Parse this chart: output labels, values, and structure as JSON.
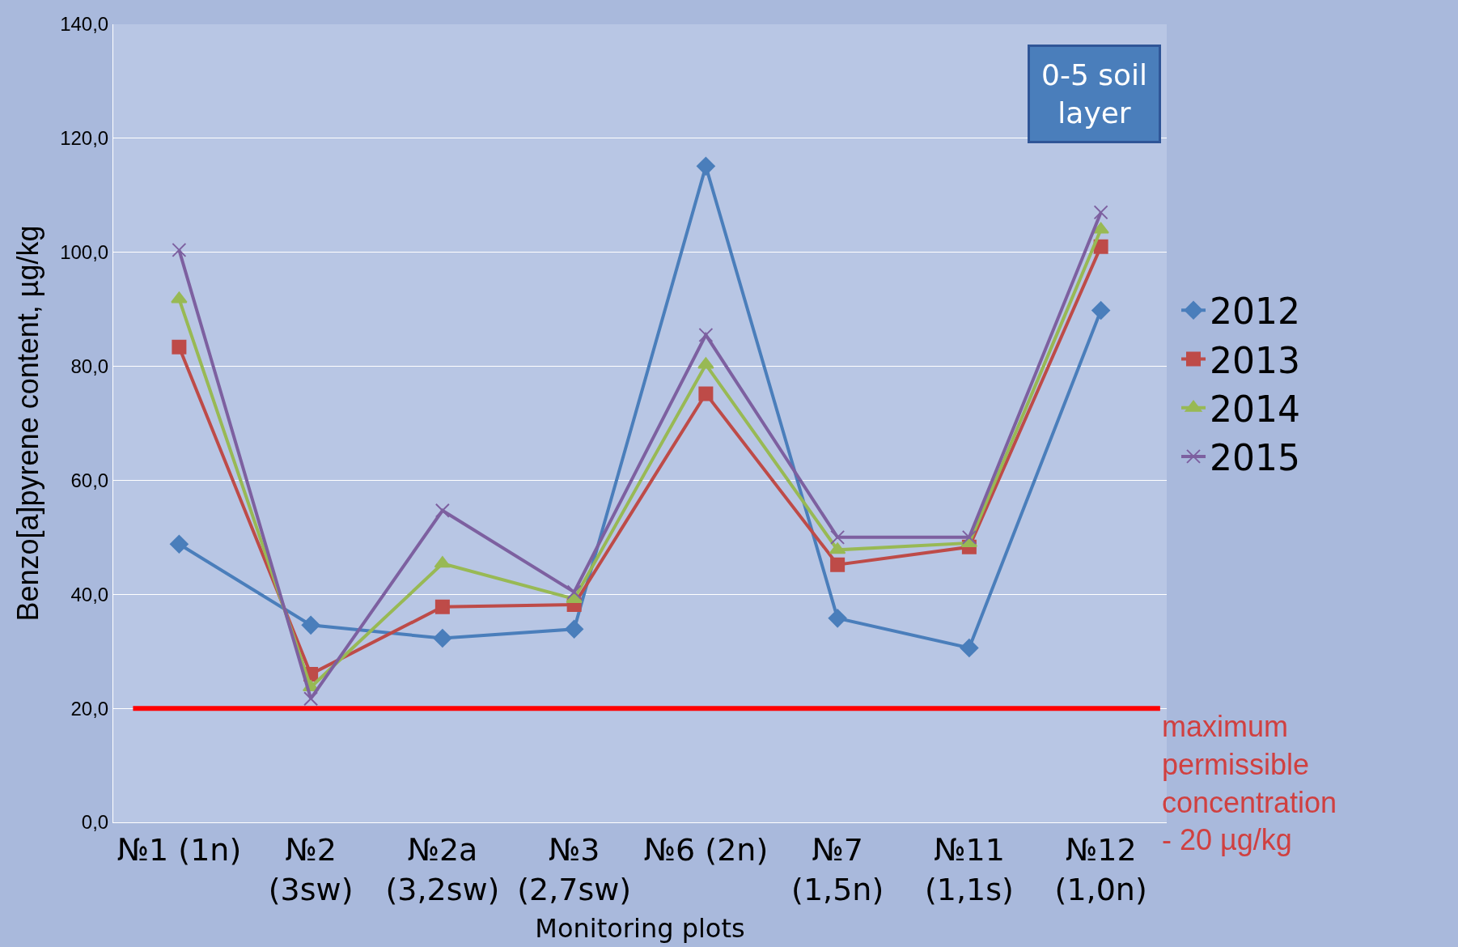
{
  "chart_data": {
    "type": "line",
    "xlabel": "Monitoring plots",
    "ylabel": "Benzo[a]pyrene content, µg/kg",
    "categories": [
      "№1 (1n)",
      "№2\n(3sw)",
      "№2a\n(3,2sw)",
      "№3\n(2,7sw)",
      "№6 (2n)",
      "№7\n(1,5n)",
      "№11\n(1,1s)",
      "№12\n(1,0n)"
    ],
    "series": [
      {
        "name": "2012",
        "color": "#4a7ebb",
        "marker": "diamond",
        "values": [
          48.8,
          34.6,
          32.3,
          33.9,
          115.1,
          35.8,
          30.6,
          89.8
        ]
      },
      {
        "name": "2013",
        "color": "#be4b48",
        "marker": "square",
        "values": [
          83.4,
          26.0,
          37.8,
          38.2,
          75.2,
          45.2,
          48.3,
          101.0
        ]
      },
      {
        "name": "2014",
        "color": "#98b954",
        "marker": "triangle",
        "values": [
          91.8,
          23.7,
          45.4,
          39.2,
          80.3,
          47.8,
          49.0,
          104.0
        ]
      },
      {
        "name": "2015",
        "color": "#7d60a0",
        "marker": "cross",
        "values": [
          100.4,
          21.7,
          54.7,
          40.4,
          85.5,
          50.0,
          50.0,
          107.0
        ]
      }
    ],
    "ylim": [
      0,
      140
    ],
    "yticks": [
      {
        "value": 0,
        "label": "0,0"
      },
      {
        "value": 20,
        "label": "20,0"
      },
      {
        "value": 40,
        "label": "40,0"
      },
      {
        "value": 60,
        "label": "60,0"
      },
      {
        "value": 80,
        "label": "80,0"
      },
      {
        "value": 100,
        "label": "100,0"
      },
      {
        "value": 120,
        "label": "120,0"
      },
      {
        "value": 140,
        "label": "140,0"
      }
    ],
    "grid": "y",
    "legend": "right",
    "ref_lines": [
      {
        "axis": "y",
        "value": 20,
        "label": "maximum\npermissible\nconcentration\n- 20 µg/kg",
        "color": "#ff0000"
      }
    ],
    "annotations": [
      "0-5 soil\nlayer"
    ]
  }
}
